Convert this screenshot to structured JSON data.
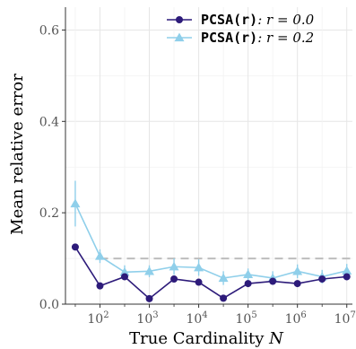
{
  "chart_data": {
    "type": "line",
    "xlabel": "True Cardinality N",
    "ylabel": "Mean relative error",
    "x_scale": "log10",
    "xlim": [
      20,
      13000000
    ],
    "ylim": [
      0,
      0.65
    ],
    "x_tick_values": [
      100,
      1000,
      10000,
      100000,
      1000000,
      10000000
    ],
    "x_tick_labels": [
      {
        "base": "10",
        "exp": "2"
      },
      {
        "base": "10",
        "exp": "3"
      },
      {
        "base": "10",
        "exp": "4"
      },
      {
        "base": "10",
        "exp": "5"
      },
      {
        "base": "10",
        "exp": "6"
      },
      {
        "base": "10",
        "exp": "7"
      }
    ],
    "y_ticks": [
      0.0,
      0.2,
      0.4,
      0.6
    ],
    "y_tick_labels": [
      "0.0",
      "0.2",
      "0.4",
      "0.6"
    ],
    "grid": true,
    "legend_position": "top-right",
    "reference_line": {
      "y": 0.1,
      "x_from": 100,
      "x_to": 13000000,
      "style": "dashed",
      "color": "#bdbdbd"
    },
    "series": [
      {
        "name": "PCSA(r): r = 0.0",
        "label_code": "PCSA(r)",
        "label_math": ": r = 0.0",
        "color": "#2d1b7a",
        "marker": "circle",
        "x": [
          31.6,
          100,
          316,
          1000,
          3162,
          10000,
          31623,
          100000,
          316228,
          1000000,
          3162278,
          10000000
        ],
        "y": [
          0.125,
          0.04,
          0.06,
          0.012,
          0.055,
          0.048,
          0.013,
          0.045,
          0.05,
          0.045,
          0.055,
          0.06
        ],
        "err": [
          0,
          0,
          0,
          0,
          0,
          0,
          0,
          0,
          0,
          0,
          0,
          0
        ]
      },
      {
        "name": "PCSA(r): r = 0.2",
        "label_code": "PCSA(r)",
        "label_math": ": r = 0.2",
        "color": "#8fcfea",
        "marker": "triangle",
        "x": [
          31.6,
          100,
          316,
          1000,
          3162,
          10000,
          31623,
          100000,
          316228,
          1000000,
          3162278,
          10000000
        ],
        "y": [
          0.22,
          0.105,
          0.07,
          0.072,
          0.082,
          0.08,
          0.057,
          0.065,
          0.057,
          0.072,
          0.06,
          0.073
        ],
        "err": [
          0.05,
          0.015,
          0.015,
          0.013,
          0.018,
          0.018,
          0.015,
          0.013,
          0.015,
          0.015,
          0.015,
          0.015
        ]
      }
    ]
  }
}
